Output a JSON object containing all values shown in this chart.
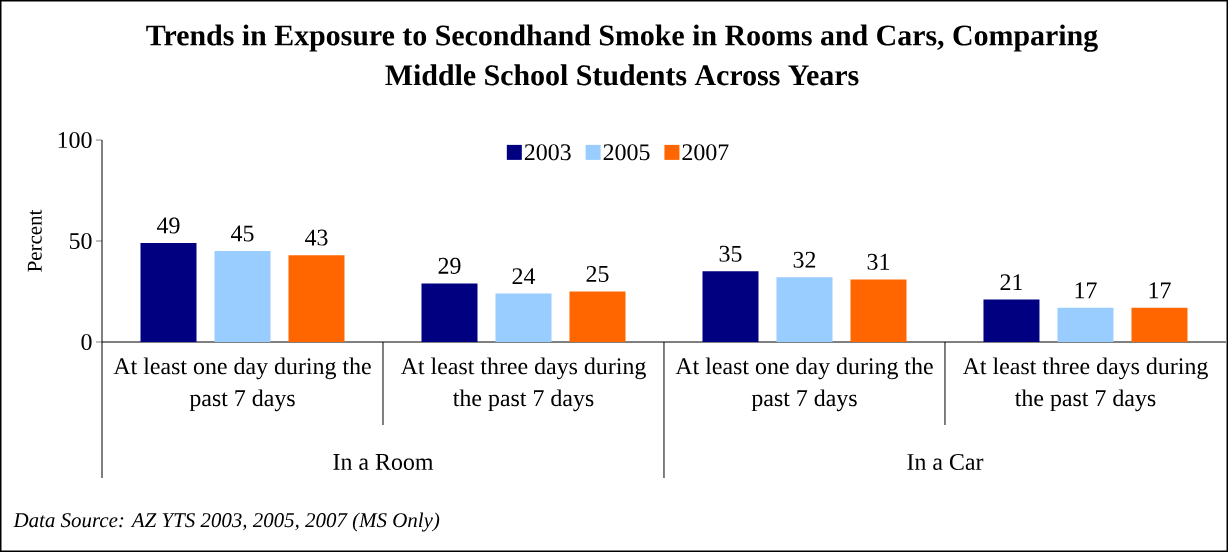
{
  "chart_data": {
    "type": "bar",
    "title": "Trends in Exposure to Secondhand Smoke in Rooms and Cars, Comparing Middle School Students Across Years",
    "categories": [
      "At least one day during the past 7 days",
      "At least three days during the past 7 days",
      "At least one day during the past 7 days",
      "At least three days during the past 7 days"
    ],
    "series": [
      {
        "name": "2003",
        "color": "#000080",
        "values": [
          49,
          29,
          35,
          21
        ]
      },
      {
        "name": "2005",
        "color": "#99ccff",
        "values": [
          45,
          24,
          32,
          17
        ]
      },
      {
        "name": "2007",
        "color": "#ff6600",
        "values": [
          43,
          25,
          31,
          17
        ]
      }
    ],
    "ylabel": "Percent",
    "ylim": [
      0,
      100
    ],
    "yticks": [
      0,
      50,
      100
    ],
    "data_labels": true,
    "legend": "top",
    "grid": false,
    "annotations": [
      "In a Room",
      "In a Car",
      "Data Source: AZ YTS 2003, 2005, 2007 (MS Only)"
    ]
  }
}
